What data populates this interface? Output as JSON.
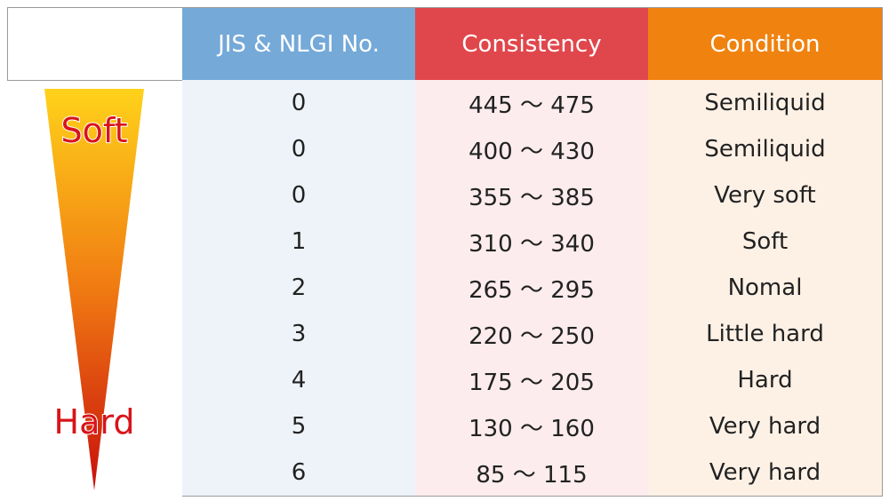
{
  "scale": {
    "top": "Soft",
    "bottom": "Hard"
  },
  "table": {
    "header": [
      "JIS & NLGI No.",
      "Consistency",
      "Condition"
    ],
    "rows": [
      [
        "0",
        "445 ～ 475",
        "Semiliquid"
      ],
      [
        "0",
        "400 ～ 430",
        "Semiliquid"
      ],
      [
        "0",
        "355 ～ 385",
        "Very soft"
      ],
      [
        "1",
        "310 ～ 340",
        "Soft"
      ],
      [
        "2",
        "265 ～ 295",
        "Nomal"
      ],
      [
        "3",
        "220 ～ 250",
        "Little hard"
      ],
      [
        "4",
        "175 ～ 205",
        "Hard"
      ],
      [
        "5",
        "130 ～ 160",
        "Very hard"
      ],
      [
        "6",
        "85 ～ 115",
        "Very hard"
      ]
    ]
  }
}
